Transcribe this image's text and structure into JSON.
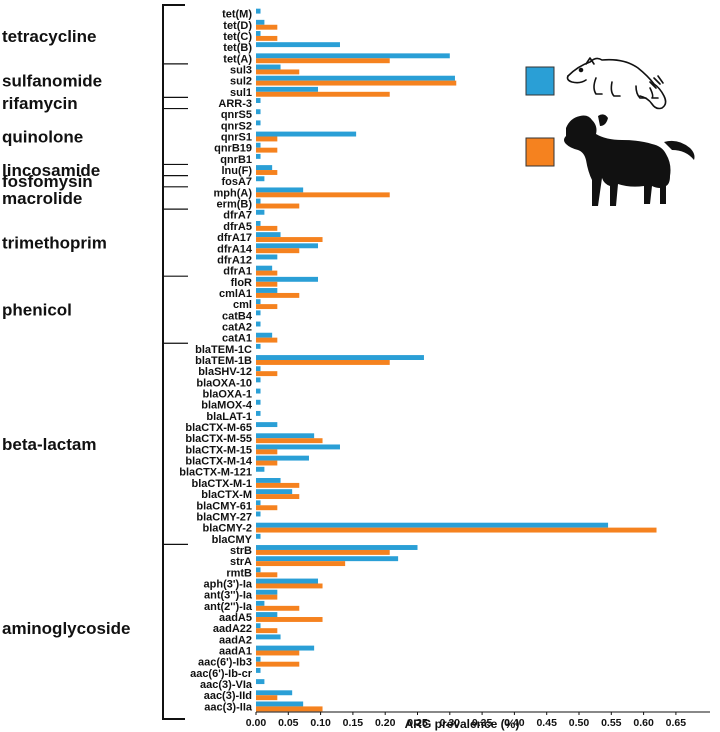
{
  "chart_data": {
    "type": "bar",
    "orientation": "horizontal",
    "xlabel": "ARG prevalence (%)",
    "xlim": [
      0,
      0.7
    ],
    "xticks": [
      "0.00",
      "0.05",
      "0.10",
      "0.15",
      "0.20",
      "0.25",
      "0.30",
      "0.35",
      "0.40",
      "0.45",
      "0.50",
      "0.55",
      "0.60",
      "0.65"
    ],
    "grid": false,
    "legend": "top-right, icon legend: raccoon and dog",
    "series": [
      {
        "icon": "raccoon-icon",
        "color": "#2a9fd6"
      },
      {
        "icon": "dog-icon",
        "color": "#f5821f"
      }
    ],
    "classes": [
      {
        "label": "tetracycline",
        "genes": [
          {
            "name": "tet(M)",
            "values": [
              0.007,
              0
            ]
          },
          {
            "name": "tet(D)",
            "values": [
              0.013,
              0.033
            ]
          },
          {
            "name": "tet(C)",
            "values": [
              0.007,
              0.033
            ]
          },
          {
            "name": "tet(B)",
            "values": [
              0.13,
              0
            ]
          },
          {
            "name": "tet(A)",
            "values": [
              0.3,
              0.207
            ]
          }
        ]
      },
      {
        "label": "sulfanomide",
        "genes": [
          {
            "name": "sul3",
            "values": [
              0.038,
              0.067
            ]
          },
          {
            "name": "sul2",
            "values": [
              0.308,
              0.31
            ]
          },
          {
            "name": "sul1",
            "values": [
              0.096,
              0.207
            ]
          }
        ]
      },
      {
        "label": "rifamycin",
        "genes": [
          {
            "name": "ARR-3",
            "values": [
              0.007,
              0
            ]
          }
        ]
      },
      {
        "label": "quinolone",
        "genes": [
          {
            "name": "qnrS5",
            "values": [
              0.007,
              0
            ]
          },
          {
            "name": "qnrS2",
            "values": [
              0.007,
              0
            ]
          },
          {
            "name": "qnrS1",
            "values": [
              0.155,
              0.033
            ]
          },
          {
            "name": "qnrB19",
            "values": [
              0.007,
              0.033
            ]
          },
          {
            "name": "qnrB1",
            "values": [
              0.007,
              0
            ]
          }
        ]
      },
      {
        "label": "lincosamide",
        "genes": [
          {
            "name": "lnu(F)",
            "values": [
              0.025,
              0.033
            ]
          }
        ]
      },
      {
        "label": "fosfomysin",
        "genes": [
          {
            "name": "fosA7",
            "values": [
              0.013,
              0
            ]
          }
        ]
      },
      {
        "label": "macrolide",
        "genes": [
          {
            "name": "mph(A)",
            "values": [
              0.073,
              0.207
            ]
          },
          {
            "name": "erm(B)",
            "values": [
              0.007,
              0.067
            ]
          }
        ]
      },
      {
        "label": "trimethoprim",
        "genes": [
          {
            "name": "dfrA7",
            "values": [
              0.013,
              0
            ]
          },
          {
            "name": "dfrA5",
            "values": [
              0.007,
              0.033
            ]
          },
          {
            "name": "dfrA17",
            "values": [
              0.038,
              0.103
            ]
          },
          {
            "name": "dfrA14",
            "values": [
              0.096,
              0.067
            ]
          },
          {
            "name": "dfrA12",
            "values": [
              0.033,
              0
            ]
          },
          {
            "name": "dfrA1",
            "values": [
              0.025,
              0.033
            ]
          }
        ]
      },
      {
        "label": "phenicol",
        "genes": [
          {
            "name": "floR",
            "values": [
              0.096,
              0.033
            ]
          },
          {
            "name": "cmlA1",
            "values": [
              0.033,
              0.067
            ]
          },
          {
            "name": "cml",
            "values": [
              0.007,
              0.033
            ]
          },
          {
            "name": "catB4",
            "values": [
              0.007,
              0
            ]
          },
          {
            "name": "catA2",
            "values": [
              0.007,
              0
            ]
          },
          {
            "name": "catA1",
            "values": [
              0.025,
              0.033
            ]
          }
        ]
      },
      {
        "label": "beta-lactam",
        "genes": [
          {
            "name": "blaTEM-1C",
            "values": [
              0.007,
              0
            ]
          },
          {
            "name": "blaTEM-1B",
            "values": [
              0.26,
              0.207
            ]
          },
          {
            "name": "blaSHV-12",
            "values": [
              0.007,
              0.033
            ]
          },
          {
            "name": "blaOXA-10",
            "values": [
              0.007,
              0
            ]
          },
          {
            "name": "blaOXA-1",
            "values": [
              0.007,
              0
            ]
          },
          {
            "name": "blaMOX-4",
            "values": [
              0.007,
              0
            ]
          },
          {
            "name": "blaLAT-1",
            "values": [
              0.007,
              0
            ]
          },
          {
            "name": "blaCTX-M-65",
            "values": [
              0.033,
              0
            ]
          },
          {
            "name": "blaCTX-M-55",
            "values": [
              0.09,
              0.103
            ]
          },
          {
            "name": "blaCTX-M-15",
            "values": [
              0.13,
              0.033
            ]
          },
          {
            "name": "blaCTX-M-14",
            "values": [
              0.082,
              0.033
            ]
          },
          {
            "name": "blaCTX-M-121",
            "values": [
              0.013,
              0
            ]
          },
          {
            "name": "blaCTX-M-1",
            "values": [
              0.038,
              0.067
            ]
          },
          {
            "name": "blaCTX-M",
            "values": [
              0.056,
              0.067
            ]
          },
          {
            "name": "blaCMY-61",
            "values": [
              0.007,
              0.033
            ]
          },
          {
            "name": "blaCMY-27",
            "values": [
              0.007,
              0
            ]
          },
          {
            "name": "blaCMY-2",
            "values": [
              0.545,
              0.62
            ]
          },
          {
            "name": "blaCMY",
            "values": [
              0.007,
              0
            ]
          }
        ]
      },
      {
        "label": "aminoglycoside",
        "genes": [
          {
            "name": "strB",
            "values": [
              0.25,
              0.207
            ]
          },
          {
            "name": "strA",
            "values": [
              0.22,
              0.138
            ]
          },
          {
            "name": "rmtB",
            "values": [
              0.007,
              0.033
            ]
          },
          {
            "name": "aph(3')-Ia",
            "values": [
              0.096,
              0.103
            ]
          },
          {
            "name": "ant(3'')-Ia",
            "values": [
              0.033,
              0.033
            ]
          },
          {
            "name": "ant(2'')-Ia",
            "values": [
              0.013,
              0.067
            ]
          },
          {
            "name": "aadA5",
            "values": [
              0.033,
              0.103
            ]
          },
          {
            "name": "aadA22",
            "values": [
              0.007,
              0.033
            ]
          },
          {
            "name": "aadA2",
            "values": [
              0.038,
              0
            ]
          },
          {
            "name": "aadA1",
            "values": [
              0.09,
              0.067
            ]
          },
          {
            "name": "aac(6')-Ib3",
            "values": [
              0.007,
              0.067
            ]
          },
          {
            "name": "aac(6')-Ib-cr",
            "values": [
              0.007,
              0
            ]
          },
          {
            "name": "aac(3)-VIa",
            "values": [
              0.013,
              0
            ]
          },
          {
            "name": "aac(3)-IId",
            "values": [
              0.056,
              0.033
            ]
          },
          {
            "name": "aac(3)-IIa",
            "values": [
              0.073,
              0.103
            ]
          }
        ]
      }
    ]
  }
}
